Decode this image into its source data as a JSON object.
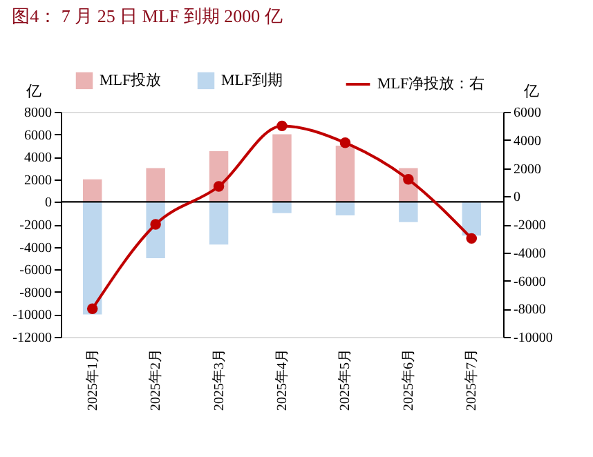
{
  "chart_data": {
    "type": "bar",
    "title": "图4： 7 月 25 日 MLF 到期 2000 亿",
    "ylabel": "亿",
    "y2label": "亿",
    "categories": [
      "2025年1月",
      "2025年2月",
      "2025年3月",
      "2025年4月",
      "2025年5月",
      "2025年6月",
      "2025年7月"
    ],
    "series": [
      {
        "name": "MLF投放",
        "color": "#eab3b3",
        "values": [
          2000,
          3000,
          4500,
          6000,
          5000,
          3000,
          0
        ]
      },
      {
        "name": "MLF到期",
        "color": "#bdd7ee",
        "values": [
          -10000,
          -5000,
          -3800,
          -1000,
          -1200,
          -1800,
          -3000
        ]
      },
      {
        "name": "MLF净投放：右",
        "type": "line",
        "axis": "y2",
        "color": "#c00000",
        "marker": "circle",
        "values": [
          -8000,
          -2000,
          700,
          5000,
          3800,
          1200,
          -3000
        ]
      }
    ],
    "ylim": [
      -12000,
      8000
    ],
    "yticks": [
      -12000,
      -10000,
      -8000,
      -6000,
      -4000,
      -2000,
      0,
      2000,
      4000,
      6000,
      8000
    ],
    "y2lim": [
      -10000,
      6000
    ],
    "y2ticks": [
      -10000,
      -8000,
      -6000,
      -4000,
      -2000,
      0,
      2000,
      4000,
      6000
    ],
    "ref_lines": [
      {
        "axis": "y",
        "value": 0,
        "color": "#000000"
      }
    ],
    "grid": false,
    "legend": "top",
    "stacked": true
  }
}
